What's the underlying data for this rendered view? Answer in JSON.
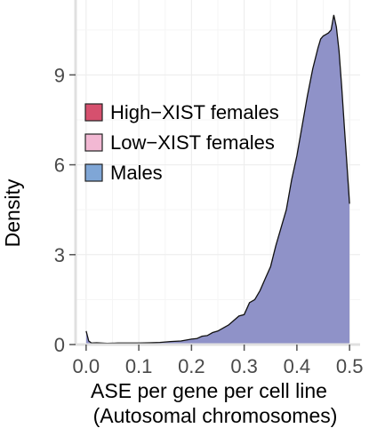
{
  "chart_data": {
    "type": "area",
    "title": "",
    "xlabel_lines": [
      "ASE per gene per cell line",
      "(Autosomal chromosomes)"
    ],
    "ylabel": "Density",
    "xlim": [
      -0.02,
      0.52
    ],
    "ylim": [
      0,
      11.5
    ],
    "x_ticks": [
      0.0,
      0.1,
      0.2,
      0.3,
      0.4,
      0.5
    ],
    "x_tick_labels": [
      "0.0",
      "0.1",
      "0.2",
      "0.3",
      "0.4",
      "0.5"
    ],
    "y_ticks": [
      0,
      3,
      6,
      9
    ],
    "y_tick_labels": [
      "0",
      "3",
      "6",
      "9"
    ],
    "grid": true,
    "legend_position": "top-left inside",
    "legend": [
      {
        "label": "High−XIST females",
        "color": "#d6506e"
      },
      {
        "label": "Low−XIST females",
        "color": "#f2b8d3"
      },
      {
        "label": "Males",
        "color": "#7fa6d6"
      }
    ],
    "series": [
      {
        "name": "Males",
        "fill": "#8f92c8",
        "x": [
          0.0,
          0.005,
          0.01,
          0.02,
          0.04,
          0.06,
          0.08,
          0.1,
          0.12,
          0.14,
          0.16,
          0.18,
          0.2,
          0.21,
          0.22,
          0.23,
          0.24,
          0.25,
          0.26,
          0.27,
          0.28,
          0.29,
          0.3,
          0.31,
          0.32,
          0.33,
          0.34,
          0.35,
          0.36,
          0.37,
          0.38,
          0.39,
          0.4,
          0.41,
          0.42,
          0.43,
          0.44,
          0.445,
          0.45,
          0.455,
          0.46,
          0.465,
          0.47,
          0.475,
          0.48,
          0.485,
          0.49,
          0.495,
          0.5
        ],
        "y": [
          0.45,
          0.12,
          0.05,
          0.06,
          0.04,
          0.05,
          0.05,
          0.05,
          0.06,
          0.07,
          0.1,
          0.12,
          0.18,
          0.2,
          0.28,
          0.3,
          0.4,
          0.45,
          0.55,
          0.65,
          0.8,
          0.95,
          1.0,
          1.4,
          1.5,
          1.8,
          2.2,
          2.6,
          3.3,
          3.9,
          4.5,
          5.5,
          6.3,
          7.3,
          8.3,
          9.2,
          9.9,
          10.2,
          10.3,
          10.35,
          10.4,
          10.5,
          11.0,
          10.6,
          9.8,
          8.6,
          7.3,
          6.0,
          4.7
        ]
      }
    ]
  }
}
